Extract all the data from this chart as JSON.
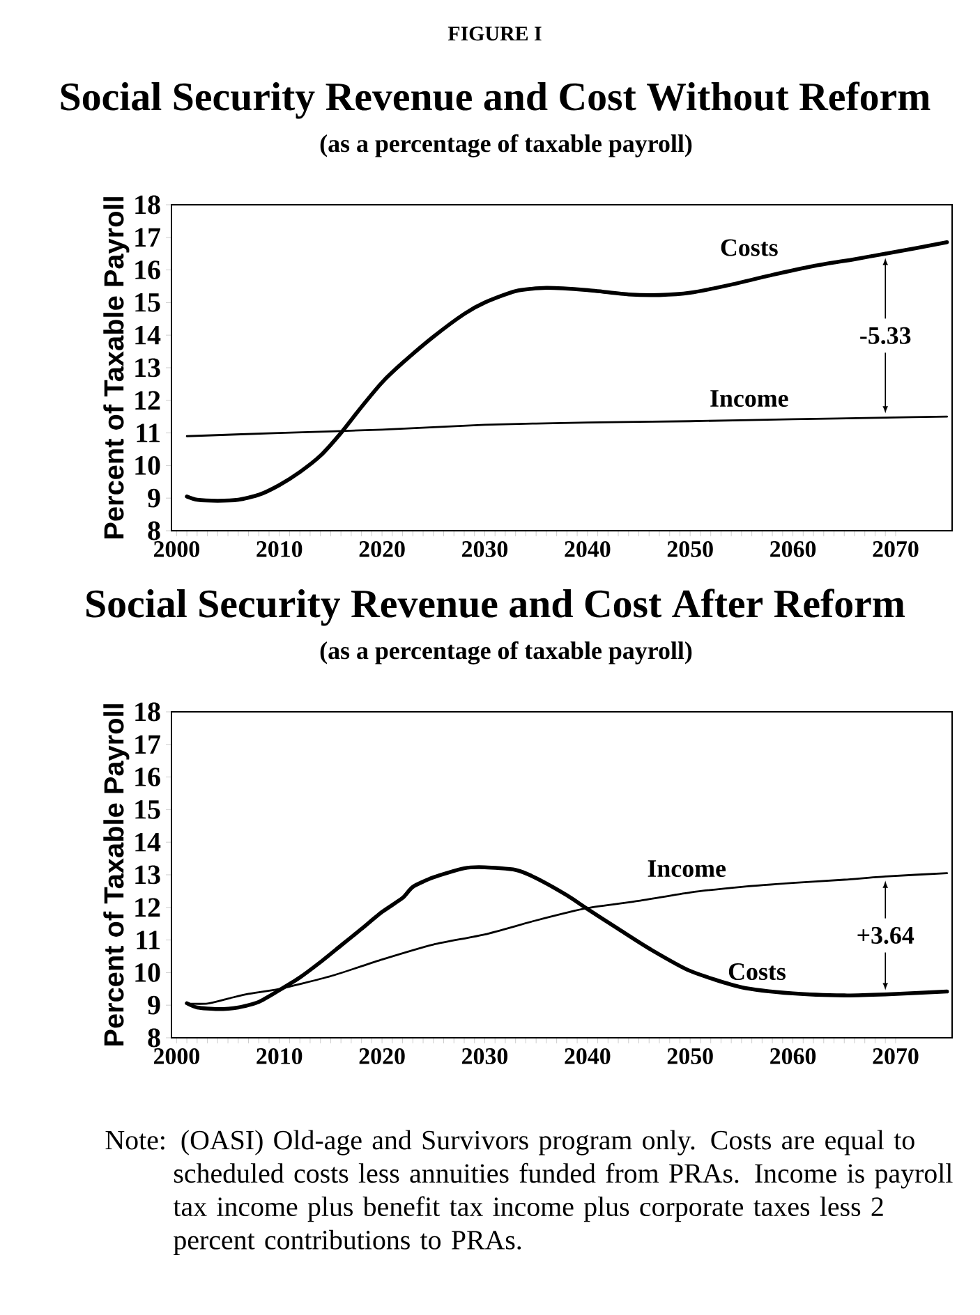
{
  "chart_data": [
    {
      "type": "line",
      "title": "Social Security Revenue and Cost Without Reform",
      "subtitle": "(as a percentage of taxable payroll)",
      "ylabel": "Percent of Taxable Payroll",
      "xlim": [
        1999.5,
        2075.5
      ],
      "xticks": [
        2000,
        2010,
        2020,
        2030,
        2040,
        2050,
        2060,
        2070
      ],
      "ylim": [
        8,
        18
      ],
      "yticks": [
        8,
        9,
        10,
        11,
        12,
        13,
        14,
        15,
        16,
        17,
        18
      ],
      "series": [
        {
          "name": "Costs",
          "color": "#000000",
          "x": [
            2001,
            2002,
            2004,
            2006,
            2008,
            2010,
            2012,
            2014,
            2016,
            2018,
            2020,
            2022,
            2025,
            2028,
            2030,
            2033,
            2036,
            2040,
            2044,
            2047,
            2050,
            2054,
            2058,
            2062,
            2066,
            2069,
            2072,
            2075
          ],
          "values": [
            9.05,
            8.95,
            8.92,
            8.95,
            9.1,
            9.4,
            9.8,
            10.3,
            11.0,
            11.8,
            12.55,
            13.15,
            13.95,
            14.65,
            15.0,
            15.35,
            15.45,
            15.38,
            15.25,
            15.23,
            15.3,
            15.55,
            15.85,
            16.12,
            16.33,
            16.5,
            16.67,
            16.85
          ]
        },
        {
          "name": "Income",
          "color": "#000000",
          "x": [
            2001,
            2010,
            2020,
            2030,
            2040,
            2050,
            2060,
            2069,
            2075
          ],
          "values": [
            10.9,
            11.0,
            11.1,
            11.25,
            11.32,
            11.36,
            11.42,
            11.47,
            11.5
          ]
        }
      ],
      "annotations": [
        "FIGURE I",
        {
          "text": "-5.33",
          "x": 2069,
          "y": 16.5
        }
      ]
    },
    {
      "type": "line",
      "title": "Social Security Revenue and Cost After Reform",
      "subtitle": "(as a percentage of taxable payroll)",
      "ylabel": "Percent of Taxable Payroll",
      "xlim": [
        1999.5,
        2075.5
      ],
      "xticks": [
        2000,
        2010,
        2020,
        2030,
        2040,
        2050,
        2060,
        2070
      ],
      "ylim": [
        8,
        18
      ],
      "yticks": [
        8,
        9,
        10,
        11,
        12,
        13,
        14,
        15,
        16,
        17,
        18
      ],
      "series": [
        {
          "name": "Costs",
          "color": "#000000",
          "x": [
            2001,
            2002,
            2004,
            2006,
            2008,
            2010,
            2012,
            2014,
            2016,
            2018,
            2020,
            2022,
            2023,
            2025,
            2028,
            2030,
            2033,
            2035,
            2038,
            2040,
            2043,
            2046,
            2050,
            2055,
            2060,
            2065,
            2069,
            2075
          ],
          "values": [
            9.06,
            8.93,
            8.88,
            8.93,
            9.1,
            9.46,
            9.85,
            10.32,
            10.83,
            11.34,
            11.86,
            12.29,
            12.63,
            12.92,
            13.2,
            13.23,
            13.15,
            12.9,
            12.37,
            11.95,
            11.34,
            10.74,
            10.05,
            9.55,
            9.36,
            9.3,
            9.33,
            9.42
          ]
        },
        {
          "name": "Income",
          "color": "#000000",
          "x": [
            2001,
            2003,
            2005,
            2007,
            2010,
            2015,
            2020,
            2025,
            2030,
            2035,
            2040,
            2045,
            2050,
            2055,
            2060,
            2065,
            2069,
            2075
          ],
          "values": [
            9.05,
            9.05,
            9.2,
            9.35,
            9.5,
            9.89,
            10.4,
            10.86,
            11.17,
            11.6,
            11.98,
            12.2,
            12.46,
            12.63,
            12.75,
            12.85,
            12.95,
            13.05
          ]
        }
      ],
      "annotations": [
        {
          "text": "+3.64",
          "x": 2069,
          "y": 12.95
        },
        "Note: (OASI) Old-age and Survivors program only.  Costs are equal to scheduled costs less annuities funded from PRAs. Income is payroll tax income plus benefit tax income plus corporate taxes less 2 percent contributions to PRAs."
      ]
    }
  ]
}
